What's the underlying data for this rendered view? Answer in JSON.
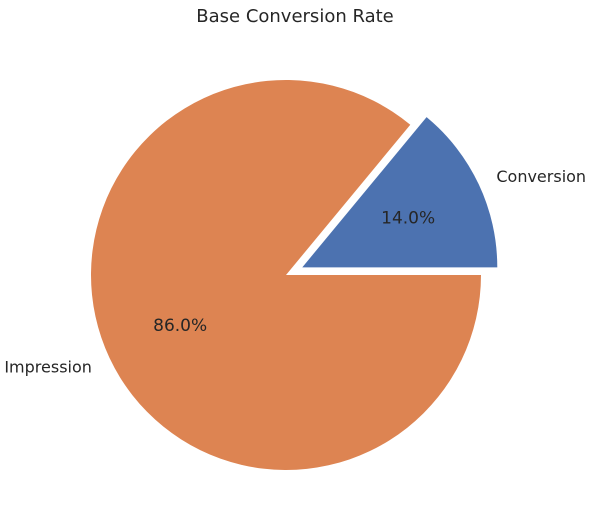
{
  "chart_data": {
    "type": "pie",
    "title": "Base Conversion Rate",
    "slices": [
      {
        "label": "Conversion",
        "value": 14.0,
        "pct_label": "14.0%",
        "color": "#4c72b0",
        "exploded": true
      },
      {
        "label": "Impression",
        "value": 86.0,
        "pct_label": "86.0%",
        "color": "#dd8452",
        "exploded": false
      }
    ],
    "start_angle_deg": 0,
    "direction": "counterclockwise"
  }
}
